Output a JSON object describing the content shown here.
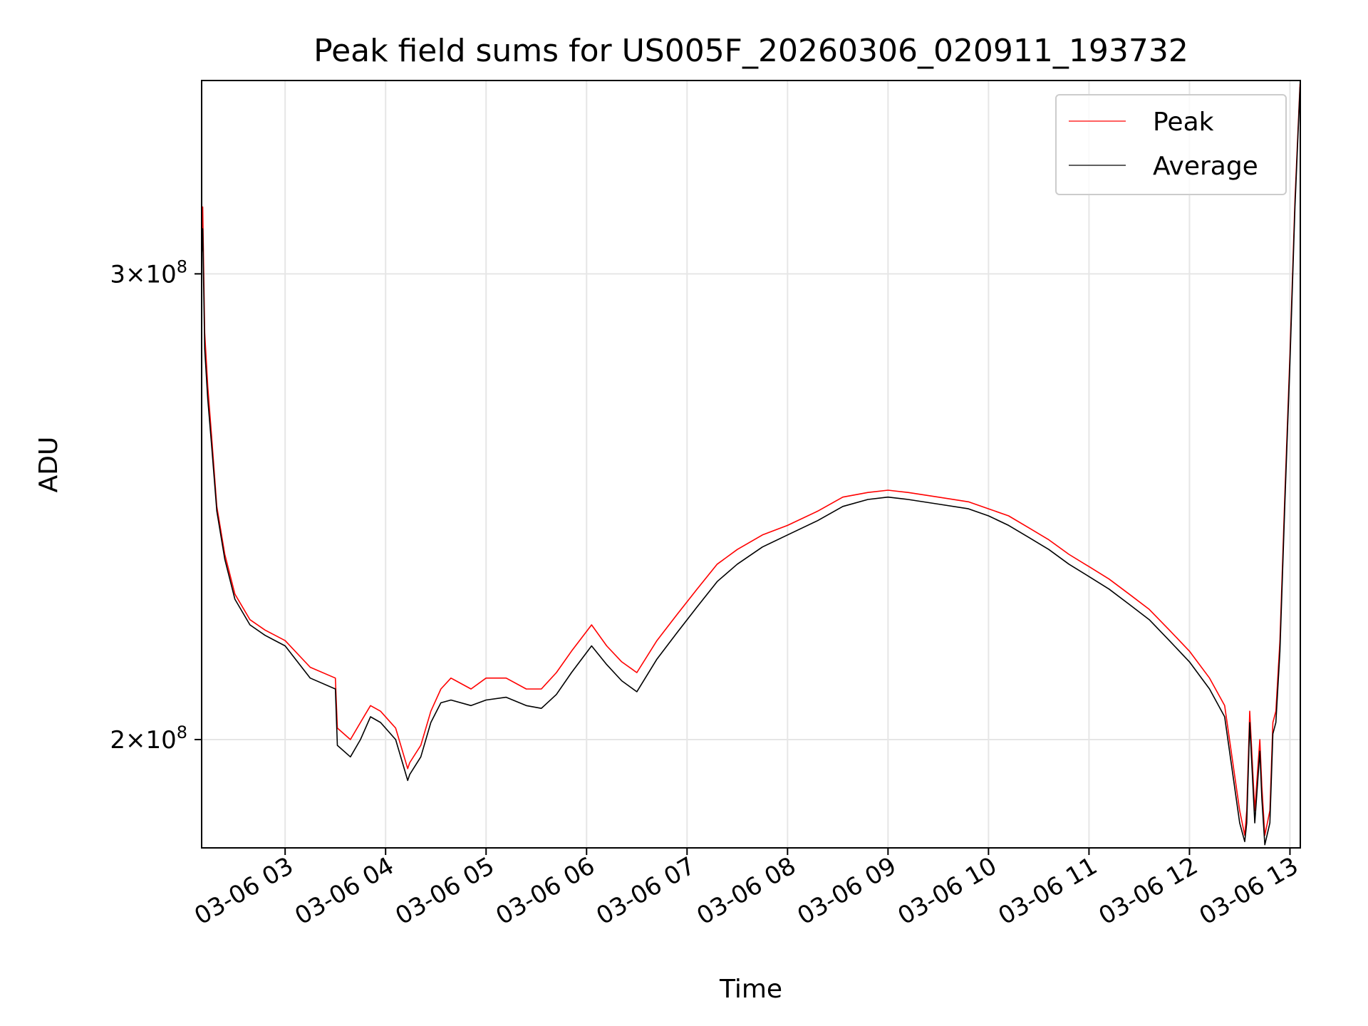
{
  "chart_data": {
    "type": "line",
    "title": "Peak field sums for US005F_20260306_020911_193732",
    "xlabel": "Time",
    "ylabel": "ADU",
    "y_scale": "log",
    "ylim": [
      182000000,
      355000000
    ],
    "xlim_hours": [
      2.1692,
      13.1031
    ],
    "x_ticks": [
      {
        "hour": 3,
        "label": "03-06 03"
      },
      {
        "hour": 4,
        "label": "03-06 04"
      },
      {
        "hour": 5,
        "label": "03-06 05"
      },
      {
        "hour": 6,
        "label": "03-06 06"
      },
      {
        "hour": 7,
        "label": "03-06 07"
      },
      {
        "hour": 8,
        "label": "03-06 08"
      },
      {
        "hour": 9,
        "label": "03-06 09"
      },
      {
        "hour": 10,
        "label": "03-06 10"
      },
      {
        "hour": 11,
        "label": "03-06 11"
      },
      {
        "hour": 12,
        "label": "03-06 12"
      },
      {
        "hour": 13,
        "label": "03-06 13"
      }
    ],
    "y_ticks": [
      {
        "value": 200000000,
        "mantissa": "2",
        "times": "×",
        "base": "10",
        "exp": "8"
      },
      {
        "value": 300000000,
        "mantissa": "3",
        "times": "×",
        "base": "10",
        "exp": "8"
      }
    ],
    "grid": true,
    "legend_position": "top-right",
    "series": [
      {
        "name": "Peak",
        "color": "#ff0000",
        "x_hours": [
          2.17,
          2.18,
          2.2,
          2.23,
          2.27,
          2.32,
          2.4,
          2.5,
          2.65,
          2.8,
          3.0,
          3.25,
          3.5,
          3.52,
          3.65,
          3.75,
          3.85,
          3.95,
          4.1,
          4.22,
          4.24,
          4.35,
          4.45,
          4.55,
          4.65,
          4.85,
          5.0,
          5.2,
          5.4,
          5.55,
          5.7,
          5.85,
          6.05,
          6.2,
          6.35,
          6.5,
          6.7,
          6.9,
          7.1,
          7.3,
          7.5,
          7.75,
          8.0,
          8.3,
          8.55,
          8.8,
          9.0,
          9.2,
          9.5,
          9.8,
          10.0,
          10.2,
          10.4,
          10.6,
          10.8,
          11.0,
          11.2,
          11.4,
          11.6,
          11.8,
          12.0,
          12.2,
          12.35,
          12.5,
          12.55,
          12.57,
          12.6,
          12.65,
          12.7,
          12.72,
          12.75,
          12.8,
          12.83,
          12.86,
          12.9,
          12.95,
          13.0,
          13.05,
          13.1
        ],
        "values": [
          310000000,
          318000000,
          285000000,
          272000000,
          260000000,
          245000000,
          235000000,
          227000000,
          222000000,
          220000000,
          218000000,
          213000000,
          211000000,
          202000000,
          200000000,
          203000000,
          206000000,
          205000000,
          202000000,
          195000000,
          196000000,
          199000000,
          205000000,
          209000000,
          211000000,
          209000000,
          211000000,
          211000000,
          209000000,
          209000000,
          212000000,
          216000000,
          221000000,
          217000000,
          214000000,
          212000000,
          218000000,
          223000000,
          228000000,
          233000000,
          236000000,
          239000000,
          241000000,
          244000000,
          247000000,
          248000000,
          248500000,
          248000000,
          247000000,
          246000000,
          244500000,
          243000000,
          240500000,
          238000000,
          235000000,
          232500000,
          230000000,
          227000000,
          224000000,
          220000000,
          216000000,
          211000000,
          206000000,
          188000000,
          184000000,
          188000000,
          205000000,
          188000000,
          200000000,
          192000000,
          184000000,
          188000000,
          203000000,
          205000000,
          218000000,
          248000000,
          280000000,
          320000000,
          354000000
        ]
      },
      {
        "name": "Average",
        "color": "#000000",
        "x_hours": [
          2.17,
          2.18,
          2.2,
          2.23,
          2.27,
          2.32,
          2.4,
          2.5,
          2.65,
          2.8,
          3.0,
          3.25,
          3.5,
          3.52,
          3.65,
          3.75,
          3.85,
          3.95,
          4.1,
          4.22,
          4.24,
          4.35,
          4.45,
          4.55,
          4.65,
          4.85,
          5.0,
          5.2,
          5.4,
          5.55,
          5.7,
          5.85,
          6.05,
          6.2,
          6.35,
          6.5,
          6.7,
          6.9,
          7.1,
          7.3,
          7.5,
          7.75,
          8.0,
          8.3,
          8.55,
          8.8,
          9.0,
          9.2,
          9.5,
          9.8,
          10.0,
          10.2,
          10.4,
          10.6,
          10.8,
          11.0,
          11.2,
          11.4,
          11.6,
          11.8,
          12.0,
          12.2,
          12.35,
          12.5,
          12.55,
          12.57,
          12.6,
          12.65,
          12.7,
          12.72,
          12.75,
          12.8,
          12.83,
          12.86,
          12.9,
          12.95,
          13.0,
          13.05,
          13.1
        ],
        "values": [
          305000000,
          312000000,
          281000000,
          269000000,
          258000000,
          244000000,
          234000000,
          226000000,
          221000000,
          219000000,
          217000000,
          211000000,
          209000000,
          199000000,
          197000000,
          200000000,
          204000000,
          203000000,
          200000000,
          193000000,
          194000000,
          197000000,
          203000000,
          206500000,
          207000000,
          206000000,
          207000000,
          207500000,
          206000000,
          205500000,
          208000000,
          212000000,
          217000000,
          213500000,
          210500000,
          208500000,
          214500000,
          219500000,
          224500000,
          229500000,
          233000000,
          236500000,
          239000000,
          242000000,
          245000000,
          246500000,
          247000000,
          246500000,
          245500000,
          244500000,
          243000000,
          241000000,
          238500000,
          236000000,
          233000000,
          230500000,
          228000000,
          225000000,
          222000000,
          218000000,
          214000000,
          209000000,
          204000000,
          186000000,
          183000000,
          186000000,
          203000000,
          186000000,
          198000000,
          190000000,
          182500000,
          186000000,
          201000000,
          203000000,
          216000000,
          246000000,
          278000000,
          318000000,
          353000000
        ]
      }
    ]
  }
}
